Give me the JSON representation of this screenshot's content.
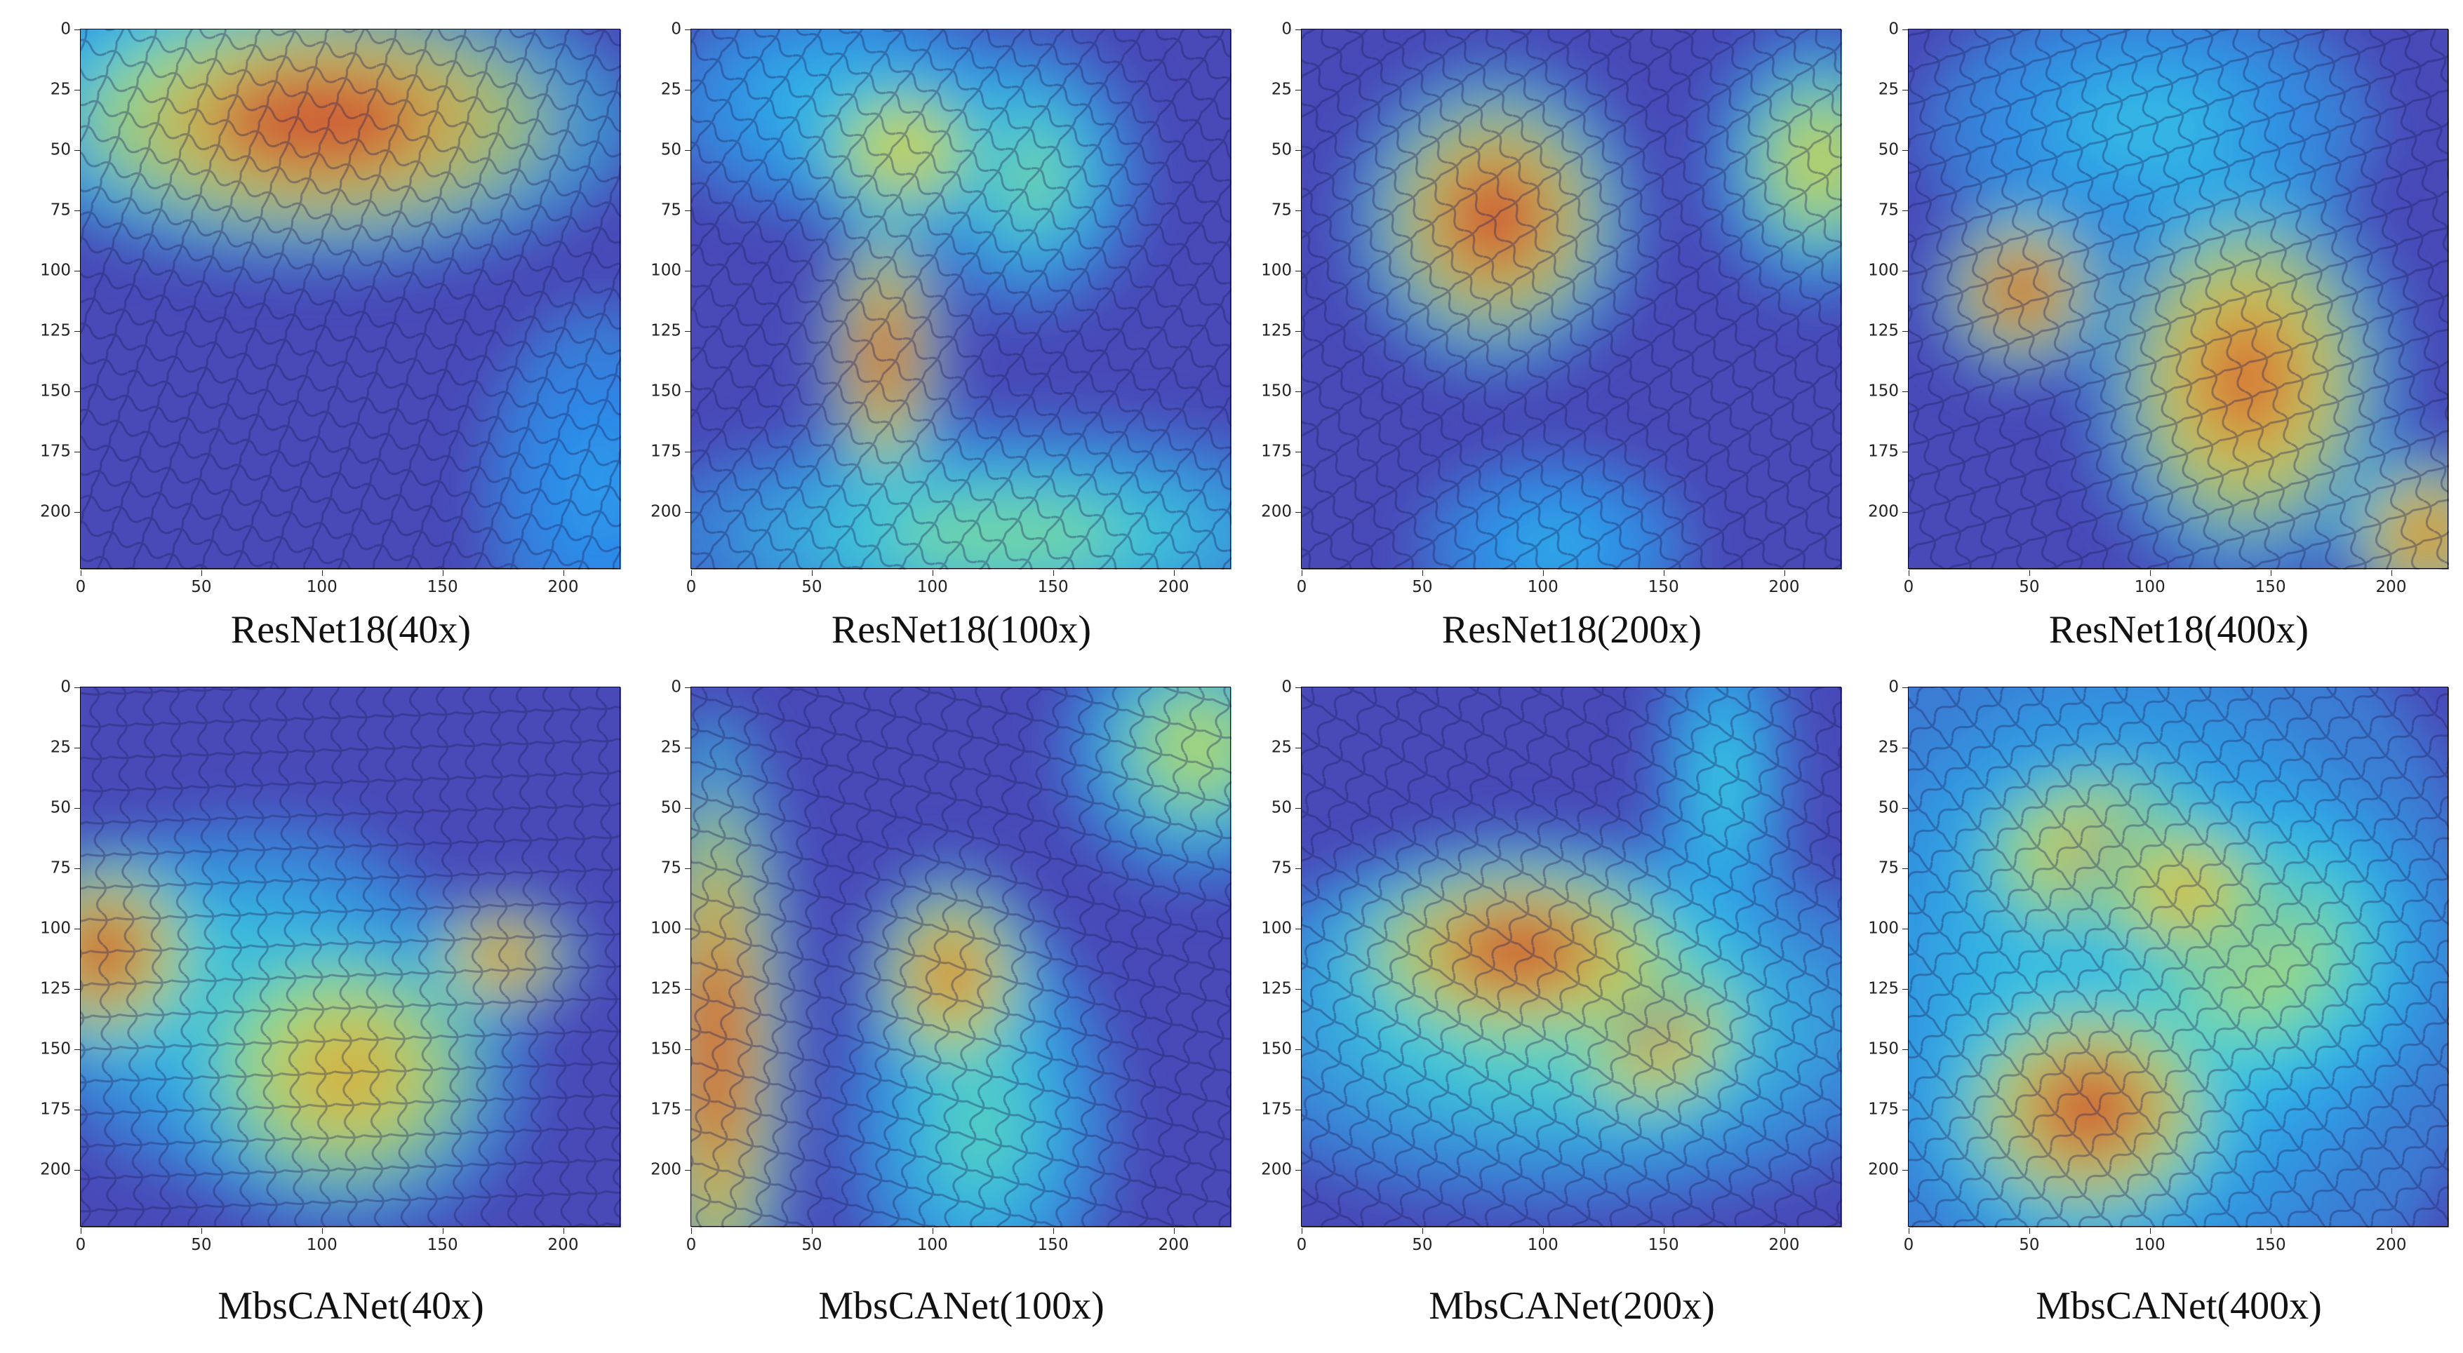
{
  "panels": [
    {
      "caption": "ResNet18(40x)",
      "row": 0,
      "col": 0,
      "hotspots": [
        {
          "cx": 98,
          "cy": 38,
          "rx": 70,
          "ry": 32,
          "level": 1.0
        },
        {
          "cx": 40,
          "cy": 20,
          "rx": 40,
          "ry": 30,
          "level": 0.5
        },
        {
          "cx": 215,
          "cy": 190,
          "rx": 25,
          "ry": 40,
          "level": 0.35
        }
      ]
    },
    {
      "caption": "ResNet18(100x)",
      "row": 0,
      "col": 1,
      "hotspots": [
        {
          "cx": 80,
          "cy": 135,
          "rx": 14,
          "ry": 35,
          "level": 1.0
        },
        {
          "cx": 88,
          "cy": 50,
          "rx": 25,
          "ry": 20,
          "level": 0.8
        },
        {
          "cx": 140,
          "cy": 60,
          "rx": 25,
          "ry": 30,
          "level": 0.6
        },
        {
          "cx": 130,
          "cy": 210,
          "rx": 80,
          "ry": 25,
          "level": 0.6
        },
        {
          "cx": 60,
          "cy": 30,
          "rx": 40,
          "ry": 25,
          "level": 0.45
        }
      ]
    },
    {
      "caption": "ResNet18(200x)",
      "row": 0,
      "col": 2,
      "hotspots": [
        {
          "cx": 80,
          "cy": 78,
          "rx": 32,
          "ry": 34,
          "level": 1.0
        },
        {
          "cx": 215,
          "cy": 55,
          "rx": 25,
          "ry": 30,
          "level": 0.75
        },
        {
          "cx": 105,
          "cy": 215,
          "rx": 30,
          "ry": 20,
          "level": 0.4
        }
      ]
    },
    {
      "caption": "ResNet18(400x)",
      "row": 0,
      "col": 3,
      "hotspots": [
        {
          "cx": 47,
          "cy": 108,
          "rx": 20,
          "ry": 20,
          "level": 1.0
        },
        {
          "cx": 140,
          "cy": 145,
          "rx": 35,
          "ry": 45,
          "level": 0.95
        },
        {
          "cx": 215,
          "cy": 210,
          "rx": 20,
          "ry": 20,
          "level": 0.95
        },
        {
          "cx": 100,
          "cy": 40,
          "rx": 50,
          "ry": 30,
          "level": 0.45
        }
      ]
    },
    {
      "caption": "MbsCANet(40x)",
      "row": 1,
      "col": 0,
      "hotspots": [
        {
          "cx": 10,
          "cy": 110,
          "rx": 25,
          "ry": 25,
          "level": 1.0
        },
        {
          "cx": 110,
          "cy": 160,
          "rx": 40,
          "ry": 35,
          "level": 0.85
        },
        {
          "cx": 175,
          "cy": 112,
          "rx": 18,
          "ry": 14,
          "level": 0.95
        },
        {
          "cx": 70,
          "cy": 130,
          "rx": 50,
          "ry": 40,
          "level": 0.55
        }
      ]
    },
    {
      "caption": "MbsCANet(100x)",
      "row": 1,
      "col": 1,
      "hotspots": [
        {
          "cx": 10,
          "cy": 150,
          "rx": 18,
          "ry": 75,
          "level": 1.0
        },
        {
          "cx": 108,
          "cy": 120,
          "rx": 20,
          "ry": 25,
          "level": 0.95
        },
        {
          "cx": 210,
          "cy": 25,
          "rx": 30,
          "ry": 30,
          "level": 0.7
        },
        {
          "cx": 120,
          "cy": 180,
          "rx": 30,
          "ry": 45,
          "level": 0.55
        }
      ]
    },
    {
      "caption": "MbsCANet(200x)",
      "row": 1,
      "col": 2,
      "hotspots": [
        {
          "cx": 90,
          "cy": 110,
          "rx": 45,
          "ry": 25,
          "level": 1.0
        },
        {
          "cx": 145,
          "cy": 140,
          "rx": 25,
          "ry": 25,
          "level": 0.95
        },
        {
          "cx": 110,
          "cy": 140,
          "rx": 85,
          "ry": 40,
          "level": 0.6
        },
        {
          "cx": 175,
          "cy": 40,
          "rx": 15,
          "ry": 40,
          "level": 0.5
        }
      ]
    },
    {
      "caption": "MbsCANet(400x)",
      "row": 1,
      "col": 3,
      "hotspots": [
        {
          "cx": 75,
          "cy": 175,
          "rx": 35,
          "ry": 30,
          "level": 1.0
        },
        {
          "cx": 80,
          "cy": 70,
          "rx": 35,
          "ry": 25,
          "level": 0.85
        },
        {
          "cx": 115,
          "cy": 85,
          "rx": 25,
          "ry": 20,
          "level": 0.85
        },
        {
          "cx": 140,
          "cy": 110,
          "rx": 45,
          "ry": 40,
          "level": 0.7
        },
        {
          "cx": 90,
          "cy": 120,
          "rx": 80,
          "ry": 90,
          "level": 0.5
        }
      ]
    }
  ],
  "ticks": [
    "0",
    "25",
    "50",
    "75",
    "100",
    "125",
    "150",
    "175",
    "200"
  ],
  "xticks": [
    "0",
    "50",
    "100",
    "150",
    "200"
  ],
  "axis_max": 224,
  "colors": {
    "background_tissue": "#5a5aa8",
    "cold": "#2a2ad8",
    "hot": "#d42020"
  }
}
